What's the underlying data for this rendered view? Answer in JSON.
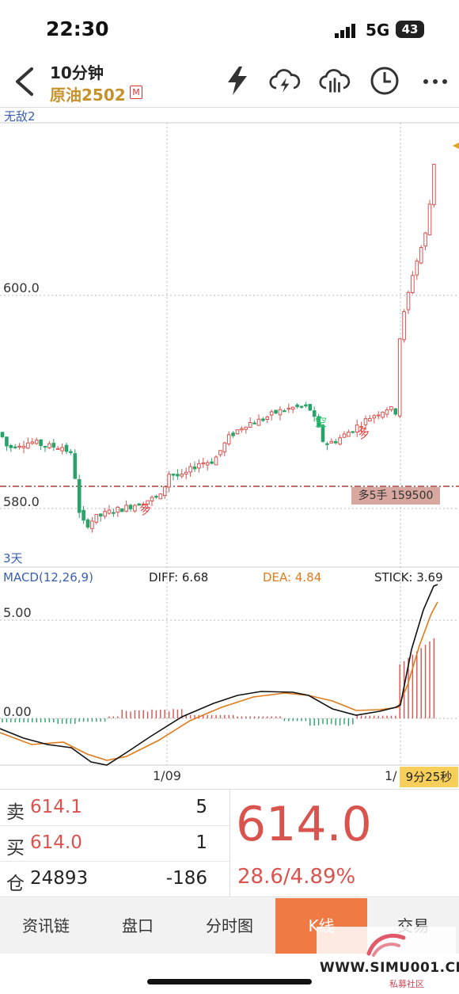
{
  "status_bar": {
    "time": "22:30",
    "network": "5G",
    "battery": "43"
  },
  "header": {
    "period": "10分钟",
    "symbol": "原油2502",
    "badge": "M",
    "icons": [
      "lightning-icon",
      "cloud-download-icon",
      "cloud-upload-icon",
      "clock-icon",
      "more-icon"
    ]
  },
  "chart": {
    "indicator": "无敌2",
    "period_label": "3天",
    "price_labels": [
      "600.0",
      "580.0"
    ],
    "position_line_label": "多5手 159500",
    "signals": {
      "short": "空",
      "long1": "多",
      "long2": "多"
    },
    "macd": {
      "name": "MACD(12,26,9)",
      "diff": "DIFF: 6.68",
      "dea": "DEA: 4.84",
      "stick": "STICK: 3.69",
      "ylabels": [
        "5.00",
        "0.00"
      ]
    },
    "x_labels": [
      "1/09",
      "1/"
    ],
    "countdown": "9分25秒"
  },
  "chart_data": {
    "type": "candlestick",
    "title": "原油2502",
    "ylim": [
      572,
      622
    ],
    "x_ticks": [
      "1/09",
      "1/"
    ],
    "position_price": 582.5,
    "last_price": 614.0,
    "macd": {
      "diff": 6.68,
      "dea": 4.84,
      "stick": 3.69
    }
  },
  "quote": {
    "sell_label": "卖",
    "sell_price": "614.1",
    "sell_qty": "5",
    "buy_label": "买",
    "buy_price": "614.0",
    "buy_qty": "1",
    "oi_label": "仓",
    "oi": "24893",
    "oi_change": "-186",
    "last": "614.0",
    "change": "28.6/4.89%"
  },
  "tabs": [
    "资讯链",
    "盘口",
    "分时图",
    "K线",
    "交易"
  ],
  "watermark": "WWW.SIMU001.CN",
  "watermark_sub": "私募社区",
  "colors": {
    "up": "#d9534f",
    "down": "#2aa36a",
    "accent": "#f07a43",
    "gold": "#c8922a",
    "blue": "#3a5fb0"
  }
}
